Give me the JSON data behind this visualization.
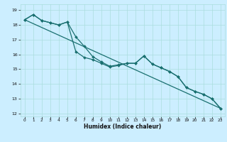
{
  "xlabel": "Humidex (Indice chaleur)",
  "background_color": "#cceeff",
  "grid_color": "#aadddd",
  "line_color": "#1a7070",
  "xlim": [
    -0.5,
    23.5
  ],
  "ylim": [
    11.8,
    19.4
  ],
  "yticks": [
    12,
    13,
    14,
    15,
    16,
    17,
    18,
    19
  ],
  "xticks": [
    0,
    1,
    2,
    3,
    4,
    5,
    6,
    7,
    8,
    9,
    10,
    11,
    12,
    13,
    14,
    15,
    16,
    17,
    18,
    19,
    20,
    21,
    22,
    23
  ],
  "series1_x": [
    0,
    1,
    2,
    3,
    4,
    5,
    6,
    7,
    8,
    9,
    10,
    11,
    12,
    13,
    14,
    15,
    16,
    17,
    18,
    19,
    20,
    21,
    22,
    23
  ],
  "series1_y": [
    18.35,
    18.7,
    18.3,
    18.15,
    18.0,
    18.2,
    17.2,
    16.55,
    15.85,
    15.5,
    15.2,
    15.3,
    15.4,
    15.4,
    15.9,
    15.35,
    15.1,
    14.85,
    14.5,
    13.75,
    13.5,
    13.3,
    13.0,
    12.35
  ],
  "series2_x": [
    0,
    1,
    2,
    3,
    4,
    5,
    6,
    7,
    8,
    9,
    10,
    11,
    12,
    13,
    14,
    15,
    16,
    17,
    18,
    19,
    20,
    21,
    22,
    23
  ],
  "series2_y": [
    18.35,
    18.7,
    18.3,
    18.15,
    18.0,
    18.2,
    16.2,
    15.8,
    15.65,
    15.4,
    15.15,
    15.25,
    15.4,
    15.4,
    15.9,
    15.35,
    15.1,
    14.85,
    14.5,
    13.75,
    13.5,
    13.3,
    13.0,
    12.35
  ],
  "trend_x": [
    0,
    23
  ],
  "trend_y": [
    18.35,
    12.35
  ],
  "xlabel_fontsize": 5.5,
  "tick_fontsize": 4.2,
  "linewidth": 0.9,
  "markersize": 2.0
}
